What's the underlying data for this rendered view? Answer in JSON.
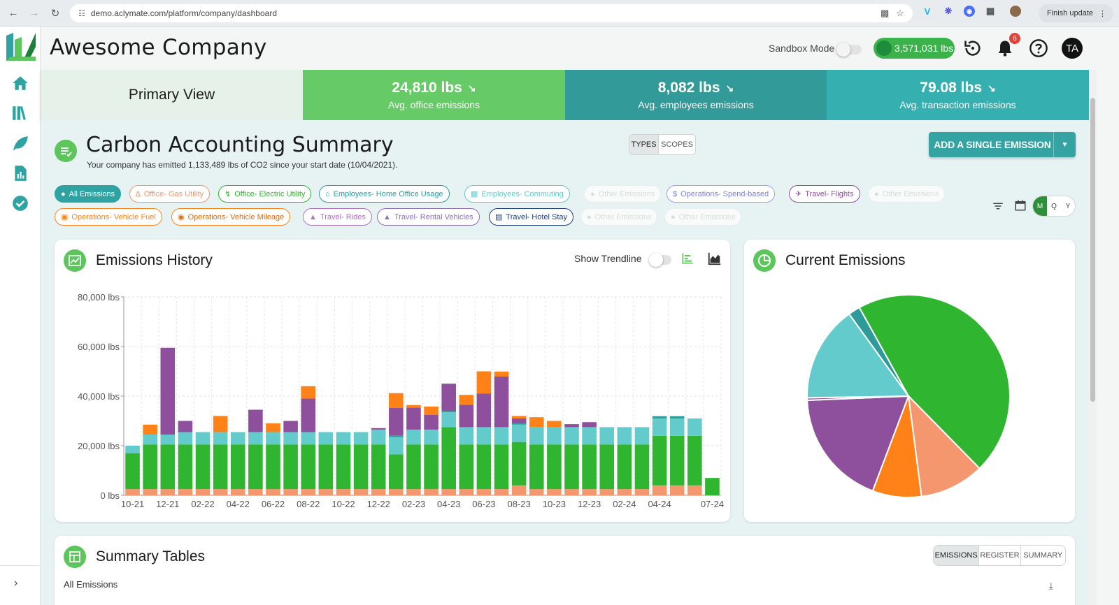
{
  "browser": {
    "url": "demo.aclymate.com/platform/company/dashboard",
    "finish_update": "Finish update"
  },
  "header": {
    "company_name": "Awesome Company",
    "sandbox_label": "Sandbox Mode",
    "credits": "3,571,031 lbs",
    "notification_count": "6",
    "avatar_initials": "TA"
  },
  "stats": {
    "primary_view": "Primary View",
    "items": [
      {
        "value": "24,810 lbs",
        "label": "Avg. office emissions"
      },
      {
        "value": "8,082 lbs",
        "label": "Avg. employees emissions"
      },
      {
        "value": "79.08 lbs",
        "label": "Avg. transaction emissions"
      }
    ]
  },
  "summary": {
    "title": "Carbon Accounting Summary",
    "subtitle": "Your company has emitted 1,133,489 lbs of CO2 since your start date (10/04/2021).",
    "view_toggle": [
      "TYPES",
      "SCOPES"
    ],
    "add_button": "ADD A SINGLE EMISSION"
  },
  "chips": [
    {
      "label": "All Emissions",
      "icon": "people-icon"
    },
    {
      "label": "Office- Gas Utility",
      "icon": "flame-icon"
    },
    {
      "label": "Office- Electric Utility",
      "icon": "bolt-icon"
    },
    {
      "label": "Employees- Home Office Usage",
      "icon": "home-icon"
    },
    {
      "label": "Employees- Commuting",
      "icon": "building-icon"
    },
    {
      "label": "Other Emissions",
      "icon": "dot-icon"
    },
    {
      "label": "Operations- Spend-based",
      "icon": "dollar-icon"
    },
    {
      "label": "Travel- Flights",
      "icon": "plane-icon"
    },
    {
      "label": "Other Emissions",
      "icon": "dot-icon"
    },
    {
      "label": "Operations- Vehicle Fuel",
      "icon": "fuel-icon"
    },
    {
      "label": "Operations- Vehicle Mileage",
      "icon": "gauge-icon"
    },
    {
      "label": "Travel- Rides",
      "icon": "car-icon"
    },
    {
      "label": "Travel- Rental Vehicles",
      "icon": "car-icon"
    },
    {
      "label": "Travel- Hotel Stay",
      "icon": "hotel-icon"
    },
    {
      "label": "Other Emissions",
      "icon": "dot-icon"
    },
    {
      "label": "Other Emissions",
      "icon": "dot-icon"
    }
  ],
  "period_toggle": [
    "M",
    "Q",
    "Y"
  ],
  "history": {
    "title": "Emissions History",
    "trendline_label": "Show Trendline"
  },
  "current": {
    "title": "Current Emissions"
  },
  "tables": {
    "title": "Summary Tables",
    "tabs": [
      "EMISSIONS",
      "REGISTER",
      "SUMMARY"
    ],
    "subtitle": "All Emissions"
  },
  "colors": {
    "green": "#2fb52f",
    "salmon": "#f4966e",
    "orange": "#ff8218",
    "teal": "#63cbcb",
    "purple": "#8e4f9c",
    "darkteal": "#2f9a9a"
  },
  "chart_data": [
    {
      "type": "bar",
      "stacked": true,
      "title": "Emissions History",
      "ylabel": "",
      "ylim": [
        0,
        80000
      ],
      "yticks": [
        "0 lbs",
        "20,000 lbs",
        "40,000 lbs",
        "60,000 lbs",
        "80,000 lbs"
      ],
      "yticks_values": [
        0,
        20000,
        40000,
        60000,
        80000
      ],
      "categories": [
        "10-21",
        "11-21",
        "12-21",
        "01-22",
        "02-22",
        "03-22",
        "04-22",
        "05-22",
        "06-22",
        "07-22",
        "08-22",
        "09-22",
        "10-22",
        "11-22",
        "12-22",
        "01-23",
        "02-23",
        "03-23",
        "04-23",
        "05-23",
        "06-23",
        "07-23",
        "08-23",
        "09-23",
        "10-23",
        "11-23",
        "12-23",
        "01-24",
        "02-24",
        "03-24",
        "04-24",
        "05-24",
        "06-24",
        "07-24"
      ],
      "xtick_labels": [
        "10-21",
        "12-21",
        "02-22",
        "04-22",
        "06-22",
        "08-22",
        "10-22",
        "12-22",
        "02-23",
        "04-23",
        "06-23",
        "08-23",
        "10-23",
        "12-23",
        "02-24",
        "04-24",
        "07-24"
      ],
      "xtick_indices": [
        0,
        2,
        4,
        6,
        8,
        10,
        12,
        14,
        16,
        18,
        20,
        22,
        24,
        26,
        28,
        30,
        33
      ],
      "series": [
        {
          "name": "Office- Gas Utility",
          "color_key": "salmon",
          "values": [
            2500,
            2500,
            2500,
            2500,
            2500,
            2500,
            2500,
            2500,
            2500,
            2500,
            2500,
            2500,
            2500,
            2500,
            2500,
            2500,
            2500,
            2500,
            2500,
            2500,
            2500,
            2500,
            4000,
            2500,
            2500,
            2500,
            2500,
            2500,
            2500,
            2500,
            4000,
            4000,
            4000,
            0
          ]
        },
        {
          "name": "Office- Electric Utility",
          "color_key": "green",
          "values": [
            14500,
            18000,
            18000,
            18000,
            18000,
            18000,
            18000,
            18000,
            18000,
            18000,
            18000,
            18000,
            18000,
            18000,
            18000,
            14000,
            18000,
            18000,
            25000,
            18000,
            18000,
            18000,
            17500,
            18000,
            18000,
            18000,
            18000,
            18000,
            18000,
            18000,
            20000,
            20000,
            20000,
            7000
          ]
        },
        {
          "name": "Employees- Commuting",
          "color_key": "teal",
          "values": [
            3000,
            4000,
            4000,
            5000,
            5000,
            5000,
            5000,
            5000,
            5000,
            5000,
            5000,
            5000,
            5000,
            5000,
            6000,
            7000,
            6000,
            6000,
            6000,
            7000,
            7000,
            7000,
            7000,
            7000,
            7000,
            7000,
            7000,
            7000,
            7000,
            7000,
            7000,
            7000,
            7000,
            0
          ]
        },
        {
          "name": "Other Emissions",
          "color_key": "darkteal",
          "values": [
            0,
            0,
            0,
            0,
            0,
            0,
            0,
            0,
            0,
            0,
            0,
            0,
            0,
            0,
            0,
            700,
            0,
            0,
            500,
            0,
            0,
            0,
            500,
            0,
            0,
            0,
            0,
            0,
            0,
            0,
            900,
            900,
            0,
            0
          ]
        },
        {
          "name": "Travel- Flights",
          "color_key": "purple",
          "values": [
            0,
            0,
            35000,
            4500,
            0,
            0,
            0,
            9000,
            0,
            4500,
            13500,
            0,
            0,
            0,
            600,
            11000,
            8900,
            6000,
            11000,
            9000,
            13500,
            20400,
            2000,
            0,
            0,
            1200,
            2000,
            0,
            0,
            0,
            0,
            0,
            0,
            0
          ]
        },
        {
          "name": "Operations- Vehicle Fuel",
          "color_key": "orange",
          "values": [
            0,
            4000,
            0,
            0,
            0,
            6500,
            0,
            0,
            3500,
            0,
            5000,
            0,
            0,
            0,
            0,
            6000,
            1000,
            3300,
            0,
            4000,
            9000,
            2000,
            1000,
            4000,
            2500,
            0,
            0,
            0,
            0,
            0,
            0,
            0,
            0,
            0
          ]
        }
      ]
    },
    {
      "type": "pie",
      "title": "Current Emissions",
      "start_angle_deg": -119,
      "slices": [
        {
          "name": "Office- Electric Utility",
          "value": 45.7,
          "color_key": "green"
        },
        {
          "name": "Office- Gas Utility",
          "value": 10.3,
          "color_key": "salmon"
        },
        {
          "name": "Operations- Vehicle Fuel",
          "value": 7.8,
          "color_key": "orange"
        },
        {
          "name": "Travel- Flights",
          "value": 18.6,
          "color_key": "purple"
        },
        {
          "name": "Travel- Rides",
          "value": 0.4,
          "color_key": "purple"
        },
        {
          "name": "Employees- Commuting",
          "value": 15.3,
          "color_key": "teal"
        },
        {
          "name": "Other Emissions",
          "value": 1.9,
          "color_key": "darkteal"
        }
      ]
    }
  ]
}
